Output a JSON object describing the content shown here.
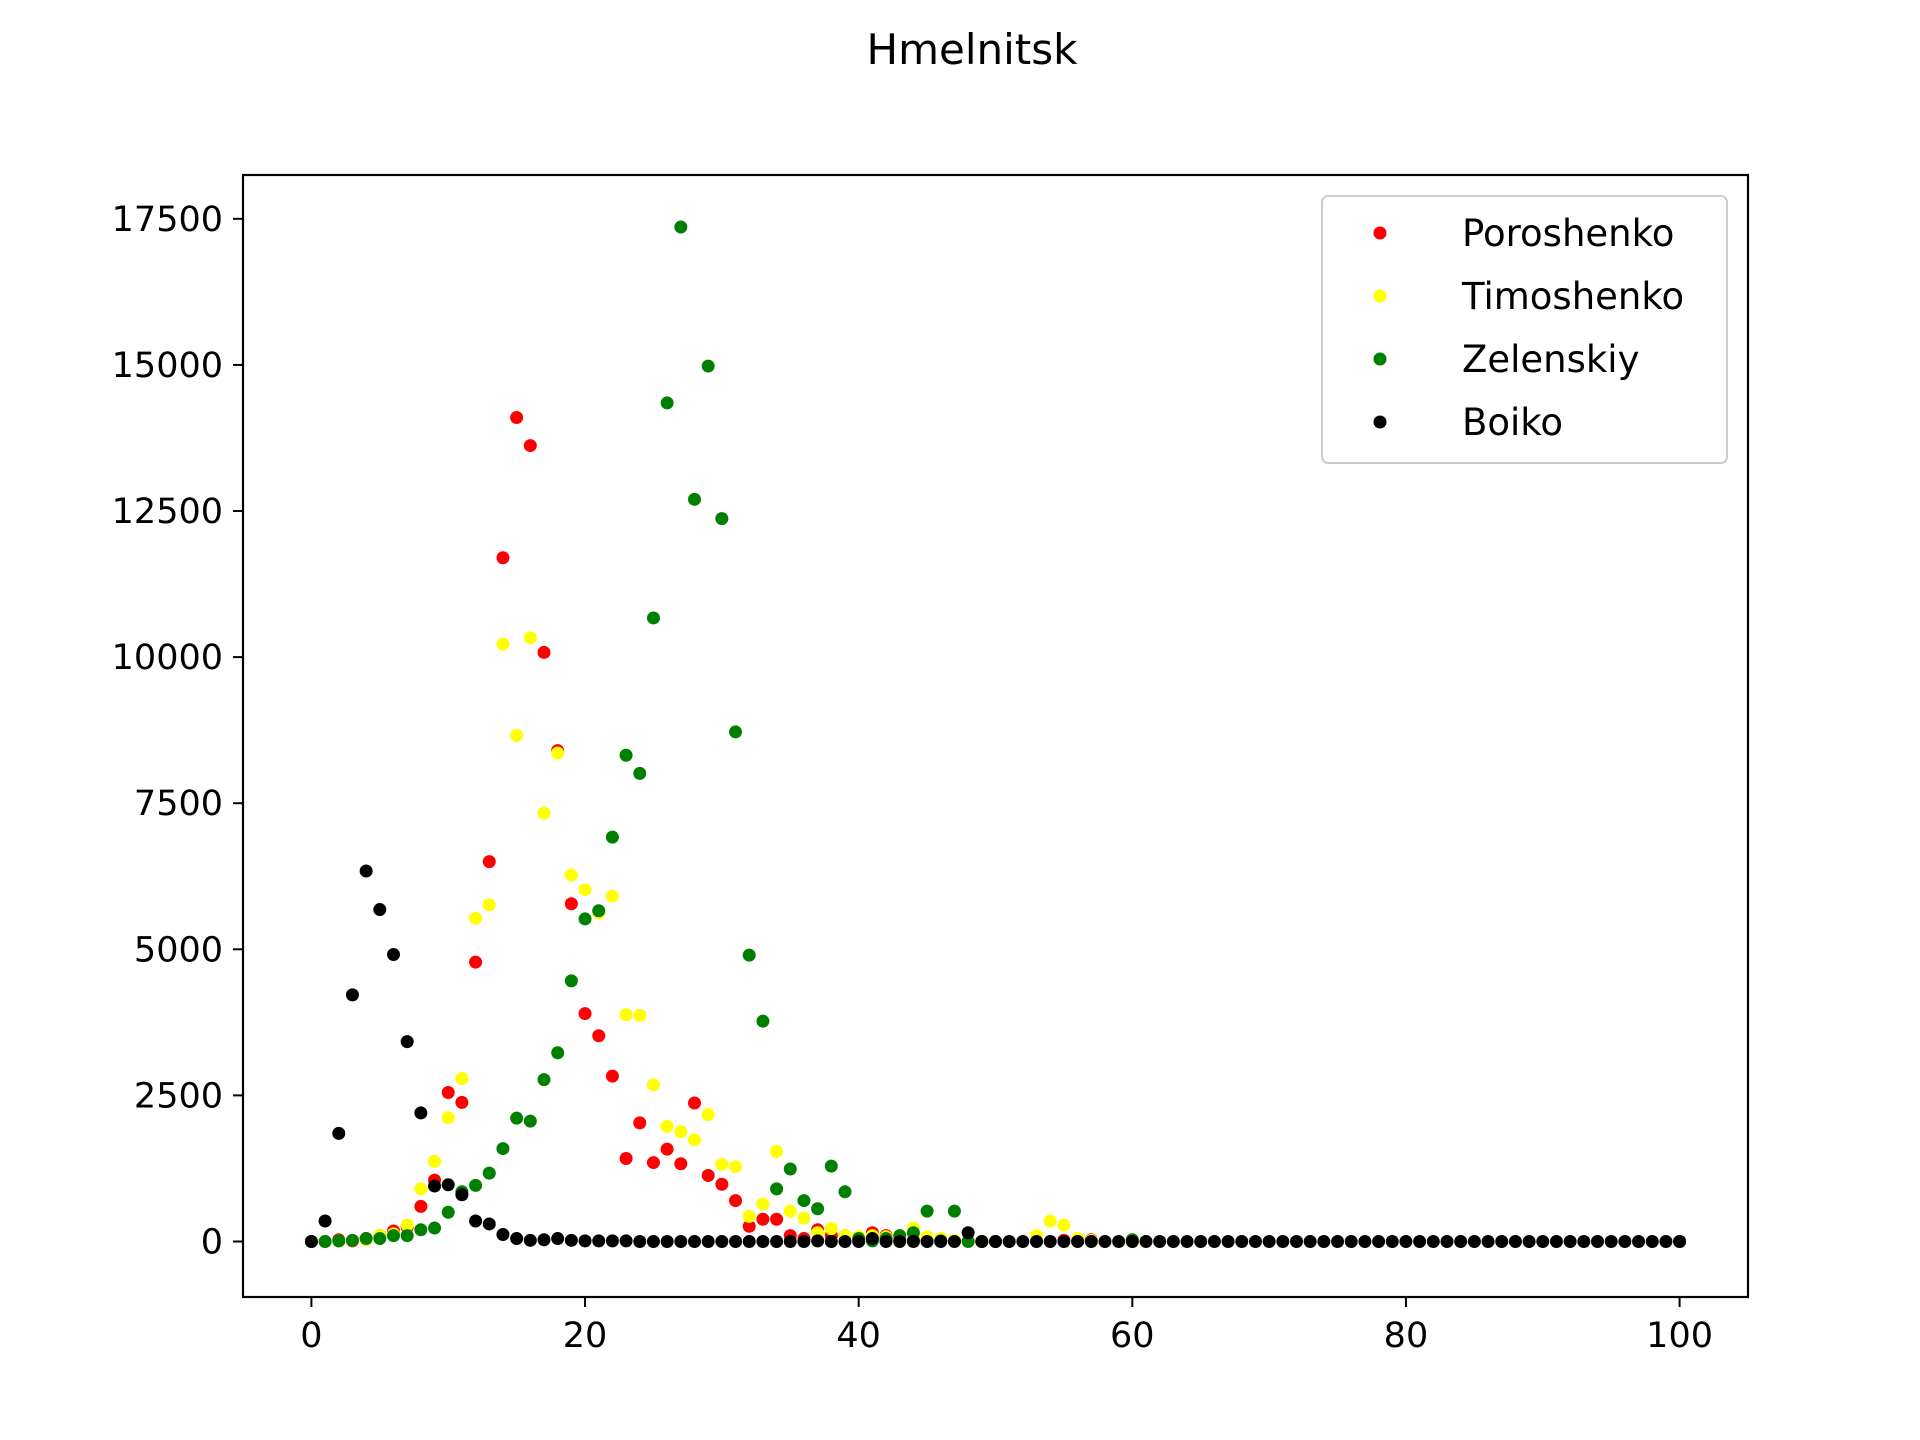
{
  "chart_data": {
    "type": "scatter",
    "title": "Hmelnitsk",
    "xlabel": "",
    "ylabel": "",
    "xlim": [
      -5,
      105
    ],
    "ylim": [
      -950,
      18250
    ],
    "xticks": [
      0,
      20,
      40,
      60,
      80,
      100
    ],
    "yticks": [
      0,
      2500,
      5000,
      7500,
      10000,
      12500,
      15000,
      17500
    ],
    "grid": false,
    "legend_position": "top-right",
    "series": [
      {
        "name": "Poroshenko",
        "color": "#ff0000",
        "points": [
          [
            0,
            0
          ],
          [
            1,
            0
          ],
          [
            2,
            30
          ],
          [
            3,
            10
          ],
          [
            4,
            50
          ],
          [
            5,
            100
          ],
          [
            6,
            180
          ],
          [
            7,
            250
          ],
          [
            8,
            600
          ],
          [
            9,
            1050
          ],
          [
            10,
            2550
          ],
          [
            11,
            2380
          ],
          [
            12,
            4780
          ],
          [
            13,
            6500
          ],
          [
            14,
            11700
          ],
          [
            15,
            14100
          ],
          [
            16,
            13620
          ],
          [
            17,
            10080
          ],
          [
            18,
            8400
          ],
          [
            19,
            5780
          ],
          [
            20,
            3900
          ],
          [
            21,
            3520
          ],
          [
            22,
            2830
          ],
          [
            23,
            1420
          ],
          [
            24,
            2030
          ],
          [
            25,
            1350
          ],
          [
            26,
            1580
          ],
          [
            27,
            1330
          ],
          [
            28,
            2370
          ],
          [
            29,
            1130
          ],
          [
            30,
            980
          ],
          [
            31,
            700
          ],
          [
            32,
            260
          ],
          [
            33,
            380
          ],
          [
            34,
            380
          ],
          [
            35,
            100
          ],
          [
            36,
            50
          ],
          [
            37,
            200
          ],
          [
            38,
            100
          ],
          [
            39,
            100
          ],
          [
            40,
            50
          ],
          [
            41,
            150
          ],
          [
            42,
            100
          ],
          [
            43,
            30
          ],
          [
            44,
            20
          ],
          [
            45,
            10
          ],
          [
            46,
            10
          ],
          [
            47,
            10
          ],
          [
            48,
            10
          ],
          [
            49,
            0
          ],
          [
            50,
            0
          ],
          [
            55,
            20
          ],
          [
            57,
            30
          ],
          [
            60,
            0
          ],
          [
            100,
            0
          ]
        ]
      },
      {
        "name": "Timoshenko",
        "color": "#ffff00",
        "points": [
          [
            0,
            0
          ],
          [
            1,
            0
          ],
          [
            2,
            10
          ],
          [
            3,
            20
          ],
          [
            4,
            30
          ],
          [
            5,
            100
          ],
          [
            6,
            130
          ],
          [
            7,
            280
          ],
          [
            8,
            900
          ],
          [
            9,
            1370
          ],
          [
            10,
            2120
          ],
          [
            11,
            2790
          ],
          [
            12,
            5530
          ],
          [
            13,
            5760
          ],
          [
            14,
            10220
          ],
          [
            15,
            8660
          ],
          [
            16,
            10330
          ],
          [
            17,
            7330
          ],
          [
            18,
            8360
          ],
          [
            19,
            6270
          ],
          [
            20,
            6020
          ],
          [
            21,
            5620
          ],
          [
            22,
            5910
          ],
          [
            23,
            3880
          ],
          [
            24,
            3870
          ],
          [
            25,
            2680
          ],
          [
            26,
            1970
          ],
          [
            27,
            1880
          ],
          [
            28,
            1740
          ],
          [
            29,
            2170
          ],
          [
            30,
            1320
          ],
          [
            31,
            1280
          ],
          [
            32,
            430
          ],
          [
            33,
            640
          ],
          [
            34,
            1540
          ],
          [
            35,
            520
          ],
          [
            36,
            400
          ],
          [
            37,
            150
          ],
          [
            38,
            220
          ],
          [
            39,
            100
          ],
          [
            40,
            80
          ],
          [
            41,
            100
          ],
          [
            42,
            80
          ],
          [
            43,
            100
          ],
          [
            44,
            230
          ],
          [
            45,
            80
          ],
          [
            46,
            50
          ],
          [
            47,
            20
          ],
          [
            48,
            10
          ],
          [
            53,
            100
          ],
          [
            54,
            350
          ],
          [
            55,
            280
          ],
          [
            56,
            50
          ],
          [
            57,
            20
          ],
          [
            60,
            0
          ],
          [
            100,
            0
          ]
        ]
      },
      {
        "name": "Zelenskiy",
        "color": "#008000",
        "points": [
          [
            0,
            0
          ],
          [
            1,
            0
          ],
          [
            2,
            10
          ],
          [
            3,
            20
          ],
          [
            4,
            50
          ],
          [
            5,
            50
          ],
          [
            6,
            100
          ],
          [
            7,
            100
          ],
          [
            8,
            200
          ],
          [
            9,
            230
          ],
          [
            10,
            500
          ],
          [
            11,
            850
          ],
          [
            12,
            960
          ],
          [
            13,
            1170
          ],
          [
            14,
            1590
          ],
          [
            15,
            2110
          ],
          [
            16,
            2060
          ],
          [
            17,
            2770
          ],
          [
            18,
            3230
          ],
          [
            19,
            4460
          ],
          [
            20,
            5520
          ],
          [
            21,
            5660
          ],
          [
            22,
            6920
          ],
          [
            23,
            8320
          ],
          [
            24,
            8010
          ],
          [
            25,
            10670
          ],
          [
            26,
            14350
          ],
          [
            27,
            17360
          ],
          [
            28,
            12700
          ],
          [
            29,
            14980
          ],
          [
            30,
            12370
          ],
          [
            31,
            8720
          ],
          [
            32,
            4900
          ],
          [
            33,
            3770
          ],
          [
            34,
            900
          ],
          [
            35,
            1240
          ],
          [
            36,
            700
          ],
          [
            37,
            560
          ],
          [
            38,
            1290
          ],
          [
            39,
            850
          ],
          [
            40,
            50
          ],
          [
            41,
            10
          ],
          [
            42,
            50
          ],
          [
            43,
            100
          ],
          [
            44,
            150
          ],
          [
            45,
            520
          ],
          [
            46,
            10
          ],
          [
            47,
            520
          ],
          [
            48,
            0
          ],
          [
            49,
            0
          ],
          [
            50,
            0
          ],
          [
            60,
            30
          ],
          [
            100,
            0
          ]
        ]
      },
      {
        "name": "Boiko",
        "color": "#000000",
        "points": [
          [
            0,
            0
          ],
          [
            1,
            350
          ],
          [
            2,
            1850
          ],
          [
            3,
            4220
          ],
          [
            4,
            6340
          ],
          [
            5,
            5680
          ],
          [
            6,
            4910
          ],
          [
            7,
            3420
          ],
          [
            8,
            2200
          ],
          [
            9,
            950
          ],
          [
            10,
            970
          ],
          [
            11,
            800
          ],
          [
            12,
            350
          ],
          [
            13,
            300
          ],
          [
            14,
            120
          ],
          [
            15,
            50
          ],
          [
            16,
            20
          ],
          [
            17,
            30
          ],
          [
            18,
            50
          ],
          [
            19,
            20
          ],
          [
            20,
            10
          ],
          [
            21,
            10
          ],
          [
            22,
            10
          ],
          [
            23,
            10
          ],
          [
            24,
            0
          ],
          [
            25,
            0
          ],
          [
            26,
            0
          ],
          [
            27,
            0
          ],
          [
            28,
            0
          ],
          [
            29,
            0
          ],
          [
            30,
            0
          ],
          [
            31,
            0
          ],
          [
            32,
            0
          ],
          [
            33,
            0
          ],
          [
            34,
            0
          ],
          [
            35,
            0
          ],
          [
            36,
            0
          ],
          [
            37,
            10
          ],
          [
            38,
            0
          ],
          [
            39,
            0
          ],
          [
            40,
            0
          ],
          [
            41,
            50
          ],
          [
            42,
            0
          ],
          [
            43,
            0
          ],
          [
            44,
            0
          ],
          [
            45,
            0
          ],
          [
            46,
            0
          ],
          [
            47,
            0
          ],
          [
            48,
            150
          ],
          [
            49,
            0
          ],
          [
            50,
            0
          ],
          [
            51,
            0
          ],
          [
            52,
            0
          ],
          [
            53,
            0
          ],
          [
            54,
            0
          ],
          [
            55,
            0
          ],
          [
            56,
            0
          ],
          [
            57,
            0
          ],
          [
            58,
            0
          ],
          [
            59,
            0
          ],
          [
            60,
            0
          ],
          [
            61,
            0
          ],
          [
            62,
            0
          ],
          [
            63,
            0
          ],
          [
            64,
            0
          ],
          [
            65,
            0
          ],
          [
            66,
            0
          ],
          [
            67,
            0
          ],
          [
            68,
            0
          ],
          [
            69,
            0
          ],
          [
            70,
            0
          ],
          [
            71,
            0
          ],
          [
            72,
            0
          ],
          [
            73,
            0
          ],
          [
            74,
            0
          ],
          [
            75,
            0
          ],
          [
            76,
            0
          ],
          [
            77,
            0
          ],
          [
            78,
            0
          ],
          [
            79,
            0
          ],
          [
            80,
            0
          ],
          [
            81,
            0
          ],
          [
            82,
            0
          ],
          [
            83,
            0
          ],
          [
            84,
            0
          ],
          [
            85,
            0
          ],
          [
            86,
            0
          ],
          [
            87,
            0
          ],
          [
            88,
            0
          ],
          [
            89,
            0
          ],
          [
            90,
            0
          ],
          [
            91,
            0
          ],
          [
            92,
            0
          ],
          [
            93,
            0
          ],
          [
            94,
            0
          ],
          [
            95,
            0
          ],
          [
            96,
            0
          ],
          [
            97,
            0
          ],
          [
            98,
            0
          ],
          [
            99,
            0
          ],
          [
            100,
            0
          ]
        ]
      }
    ]
  }
}
